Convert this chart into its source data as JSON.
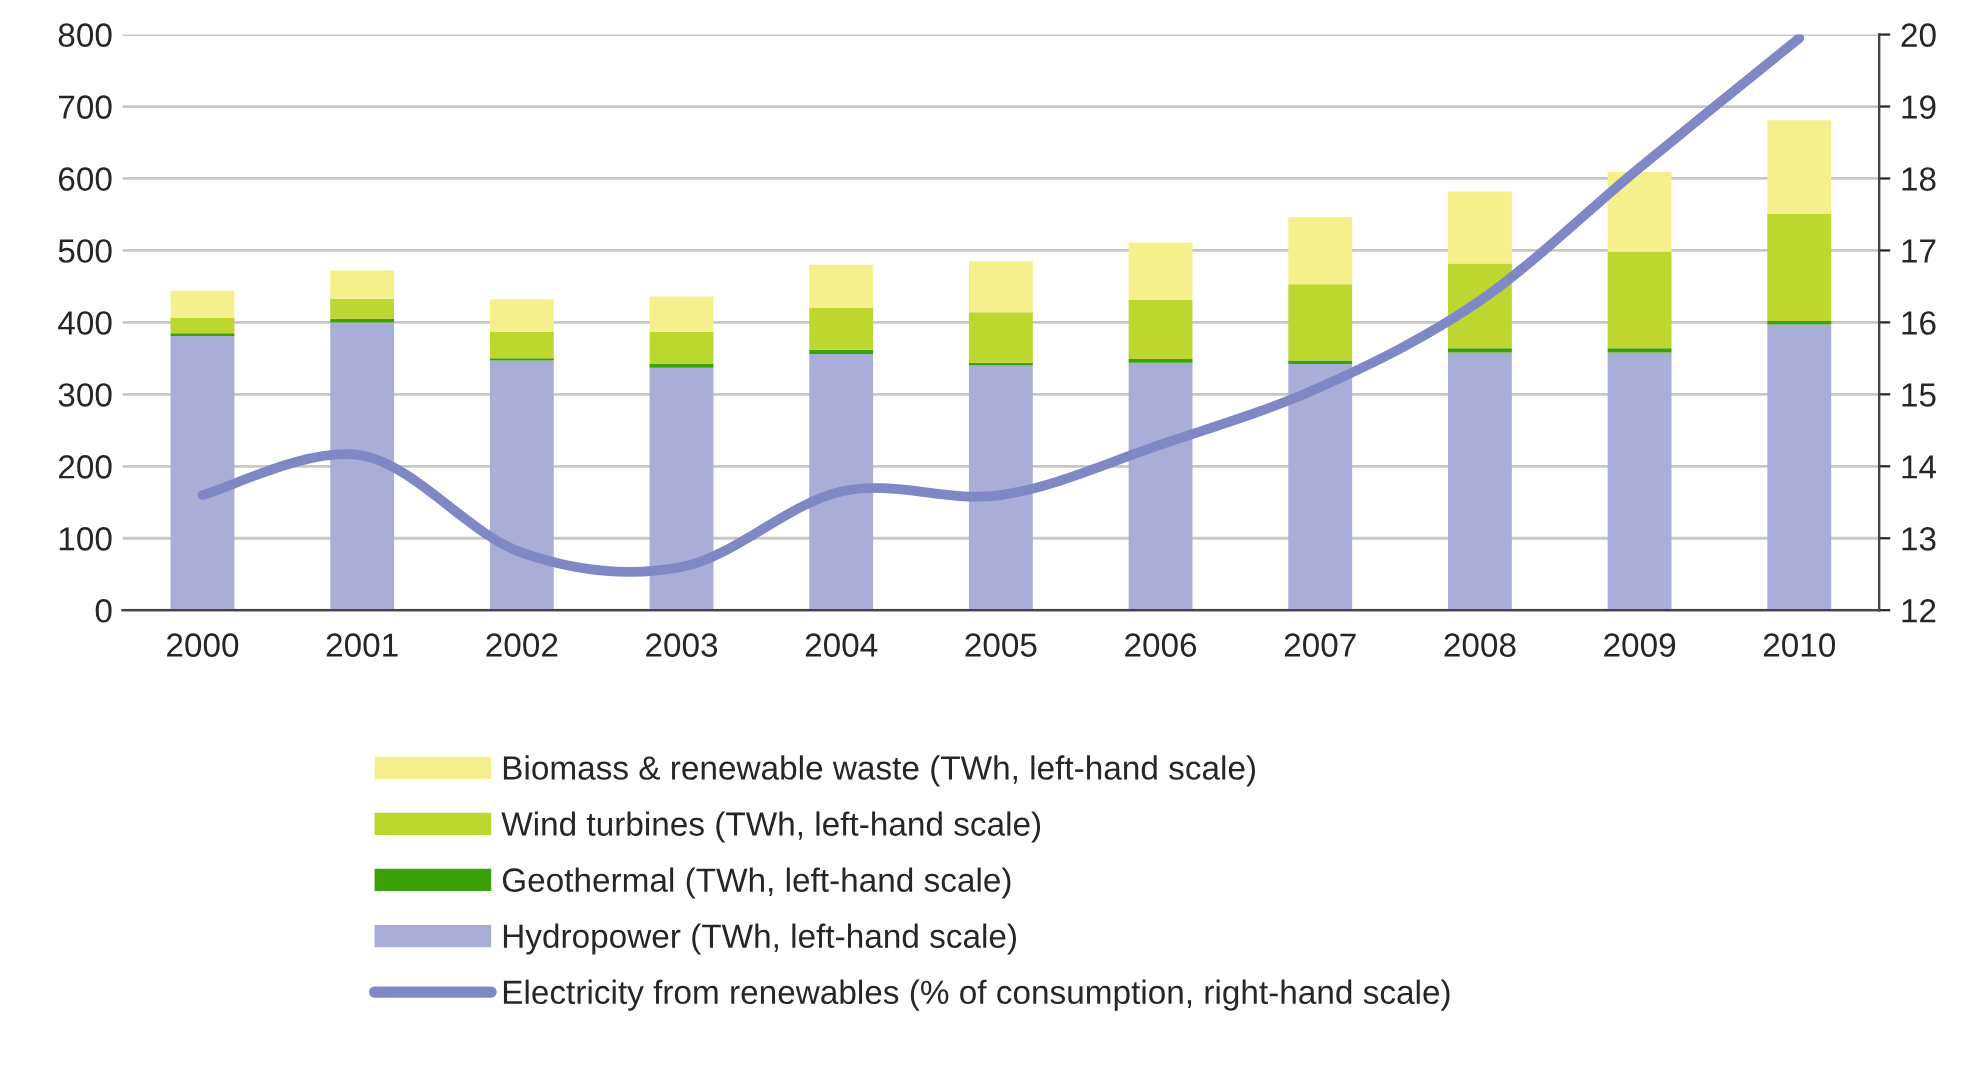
{
  "chart_data": {
    "type": "bar",
    "stacked": true,
    "categories": [
      "2000",
      "2001",
      "2002",
      "2003",
      "2004",
      "2005",
      "2006",
      "2007",
      "2008",
      "2009",
      "2010"
    ],
    "series": [
      {
        "name": "Hydropower (TWh, left-hand scale)",
        "color": "#a9aed8",
        "values": [
          381,
          400,
          347,
          337,
          356,
          340,
          344,
          342,
          358,
          358,
          397
        ]
      },
      {
        "name": "Geothermal (TWh, left-hand scale)",
        "color": "#3aa10a",
        "values": [
          4,
          5,
          3,
          5,
          6,
          4,
          5,
          5,
          6,
          6,
          5
        ]
      },
      {
        "name": "Wind turbines (TWh, left-hand scale)",
        "color": "#bed630",
        "values": [
          21,
          28,
          37,
          45,
          58,
          70,
          82,
          106,
          118,
          134,
          149
        ]
      },
      {
        "name": "Biomass & renewable waste (TWh, left-hand scale)",
        "color": "#f4f08c",
        "values": [
          38,
          39,
          45,
          49,
          60,
          71,
          80,
          93,
          100,
          111,
          130
        ]
      },
      {
        "name": "Electricity from renewables (% of consumption, right-hand scale)",
        "type": "line",
        "axis": "y2",
        "color": "#7f88c4",
        "values": [
          13.6,
          14.15,
          12.8,
          12.6,
          13.65,
          13.6,
          14.3,
          15.1,
          16.3,
          18.15,
          19.95
        ]
      }
    ],
    "ylim": [
      0,
      800
    ],
    "yticks": [
      0,
      100,
      200,
      300,
      400,
      500,
      600,
      700,
      800
    ],
    "y2lim": [
      12,
      20
    ],
    "y2ticks": [
      12,
      13,
      14,
      15,
      16,
      17,
      18,
      19,
      20
    ],
    "grid": "y",
    "legend": "bottom"
  }
}
